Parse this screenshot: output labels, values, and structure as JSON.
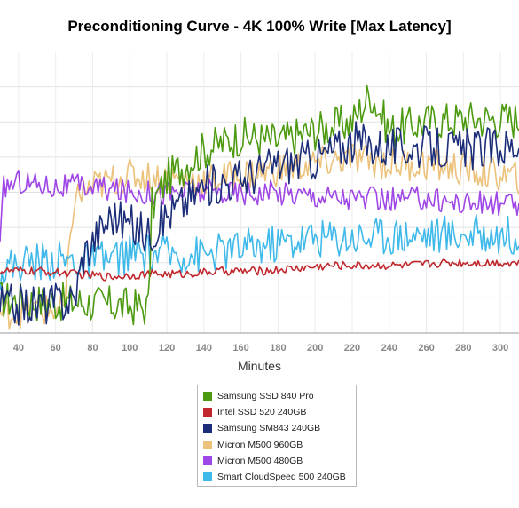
{
  "chart_data": {
    "type": "line",
    "title": "Preconditioning Curve - 4K 100% Write [Max Latency]",
    "xlabel": "Minutes",
    "ylabel": "",
    "xlim": [
      30,
      310
    ],
    "ylim": [
      0,
      100
    ],
    "x_ticks": [
      "40",
      "60",
      "80",
      "100",
      "120",
      "140",
      "160",
      "180",
      "200",
      "220",
      "240",
      "260",
      "280",
      "300"
    ],
    "grid": true,
    "legend_position": "bottom-center",
    "series": [
      {
        "name": "Samsung SSD 840 Pro",
        "color": "#4c9a10",
        "x": [
          30,
          50,
          70,
          90,
          110,
          112,
          120,
          140,
          160,
          180,
          200,
          220,
          230,
          240,
          260,
          280,
          300,
          310
        ],
        "values": [
          12,
          11,
          11,
          10,
          9,
          45,
          55,
          65,
          70,
          68,
          72,
          75,
          85,
          72,
          75,
          76,
          76,
          76
        ]
      },
      {
        "name": "Intel SSD 520 240GB",
        "color": "#c0272d",
        "x": [
          30,
          50,
          70,
          90,
          110,
          130,
          150,
          170,
          190,
          210,
          230,
          250,
          270,
          290,
          310
        ],
        "values": [
          22,
          22,
          21,
          20,
          21,
          21,
          22,
          22,
          23,
          24,
          24,
          24,
          25,
          25,
          25
        ]
      },
      {
        "name": "Samsung SM843 240GB",
        "color": "#1b2d78",
        "x": [
          30,
          50,
          70,
          75,
          90,
          110,
          120,
          140,
          160,
          180,
          200,
          220,
          240,
          260,
          280,
          300,
          310
        ],
        "values": [
          10,
          10,
          12,
          28,
          42,
          35,
          42,
          52,
          55,
          60,
          62,
          68,
          66,
          66,
          65,
          66,
          67
        ]
      },
      {
        "name": "Micron M500 960GB",
        "color": "#ecc27b",
        "x": [
          30,
          50,
          60,
          65,
          70,
          80,
          100,
          120,
          140,
          160,
          180,
          200,
          220,
          240,
          260,
          280,
          300,
          310
        ],
        "values": [
          7,
          8,
          8,
          9,
          48,
          52,
          56,
          55,
          54,
          56,
          58,
          60,
          62,
          60,
          60,
          58,
          56,
          55
        ]
      },
      {
        "name": "Micron M500 480GB",
        "color": "#9e46e6",
        "x": [
          30,
          32,
          40,
          60,
          80,
          100,
          120,
          140,
          160,
          180,
          200,
          220,
          240,
          260,
          280,
          300,
          310
        ],
        "values": [
          30,
          52,
          54,
          52,
          52,
          50,
          50,
          50,
          50,
          50,
          49,
          48,
          47,
          48,
          46,
          46,
          45
        ]
      },
      {
        "name": "Smart CloudSpeed 500 240GB",
        "color": "#3fb9ea",
        "x": [
          30,
          40,
          60,
          80,
          100,
          120,
          140,
          160,
          180,
          200,
          220,
          240,
          260,
          280,
          300,
          310
        ],
        "values": [
          22,
          25,
          26,
          25,
          28,
          28,
          28,
          30,
          32,
          34,
          34,
          35,
          35,
          35,
          35,
          35
        ]
      }
    ]
  }
}
